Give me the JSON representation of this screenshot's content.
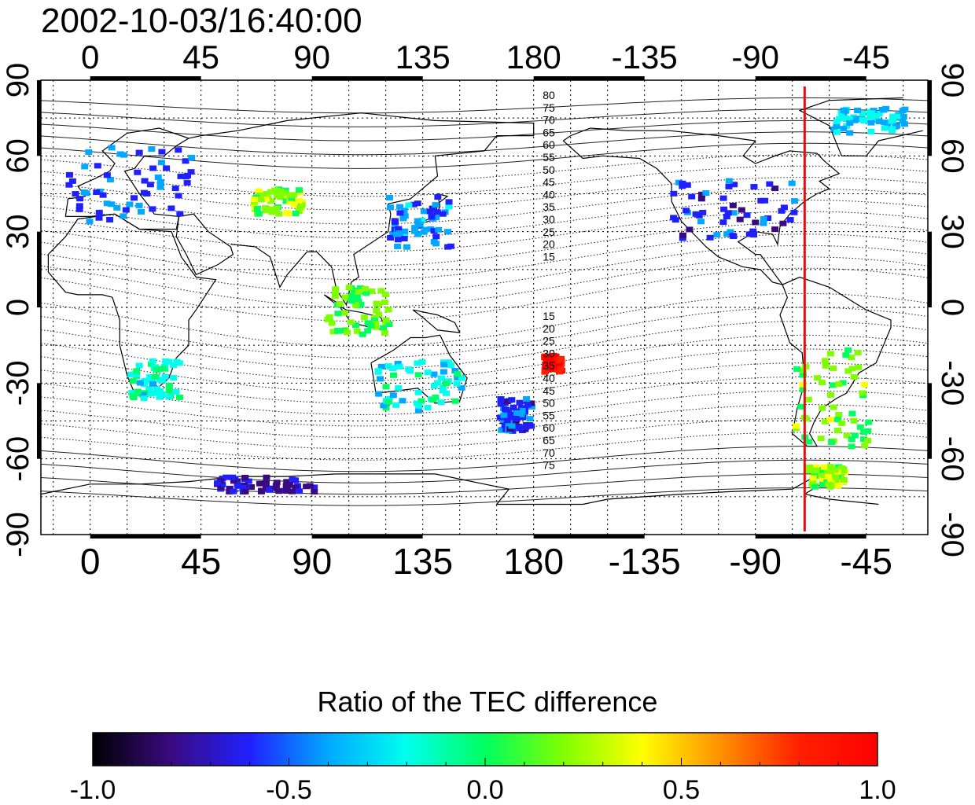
{
  "title": "2002-10-03/16:40:00",
  "colorbar": {
    "title": "Ratio of the TEC difference",
    "range": [
      -1.0,
      1.0
    ],
    "tick_labels": [
      "-1.0",
      "-0.5",
      "0.0",
      "0.5",
      "1.0"
    ],
    "colors": [
      "#000000",
      "#3a0a80",
      "#2020ff",
      "#00a8ff",
      "#00ffee",
      "#00ff60",
      "#80ff00",
      "#ffff00",
      "#ff9000",
      "#ff2000",
      "#ff0000"
    ]
  },
  "map": {
    "x_tick_labels": [
      "0",
      "45",
      "90",
      "135",
      "180",
      "-135",
      "-90",
      "-45"
    ],
    "y_tick_labels_left": [
      "90",
      "60",
      "30",
      "0",
      "-30",
      "-60",
      "-90"
    ],
    "y_tick_labels_right": [
      "90",
      "60",
      "30",
      "0",
      "-30",
      "-60",
      "-90"
    ],
    "geomag_labels_north": [
      "80",
      "75",
      "70",
      "65",
      "60",
      "55",
      "50",
      "45",
      "40",
      "35",
      "30",
      "25",
      "20",
      "15"
    ],
    "geomag_labels_south": [
      "15",
      "20",
      "25",
      "30",
      "35",
      "40",
      "45",
      "50",
      "55",
      "60",
      "65",
      "70",
      "75"
    ],
    "marker_longitude": -70,
    "marker_color": "#e01010",
    "patches": [
      {
        "region": "north-america",
        "lon": [
          -125,
          -75
        ],
        "lat": [
          28,
          52
        ],
        "value": -0.6
      },
      {
        "region": "europe",
        "lon": [
          -10,
          40
        ],
        "lat": [
          35,
          65
        ],
        "value": -0.5
      },
      {
        "region": "east-asia",
        "lon": [
          120,
          145
        ],
        "lat": [
          25,
          45
        ],
        "value": -0.45
      },
      {
        "region": "south-america",
        "lon": [
          -75,
          -45
        ],
        "lat": [
          -55,
          -15
        ],
        "value": 0.15
      },
      {
        "region": "central-asia",
        "lon": [
          65,
          85
        ],
        "lat": [
          38,
          48
        ],
        "value": 0.2
      },
      {
        "region": "australia",
        "lon": [
          115,
          150
        ],
        "lat": [
          -40,
          -20
        ],
        "value": -0.2
      },
      {
        "region": "new-zealand",
        "lon": [
          165,
          178
        ],
        "lat": [
          -48,
          -35
        ],
        "value": -0.55
      },
      {
        "region": "africa-south",
        "lon": [
          15,
          35
        ],
        "lat": [
          -35,
          -20
        ],
        "value": -0.15
      },
      {
        "region": "southeast-asia",
        "lon": [
          95,
          120
        ],
        "lat": [
          -10,
          10
        ],
        "value": 0.1
      },
      {
        "region": "antarctic-coast",
        "lon": [
          50,
          90
        ],
        "lat": [
          -72,
          -66
        ],
        "value": -0.7
      },
      {
        "region": "antarctic-peninsula",
        "lon": [
          -70,
          -55
        ],
        "lat": [
          -70,
          -62
        ],
        "value": 0.25
      },
      {
        "region": "fiji-anomaly",
        "lon": [
          183,
          190
        ],
        "lat": [
          -25,
          -18
        ],
        "value": 0.95
      },
      {
        "region": "greenland",
        "lon": [
          -60,
          -30
        ],
        "lat": [
          70,
          80
        ],
        "value": -0.3
      }
    ]
  }
}
